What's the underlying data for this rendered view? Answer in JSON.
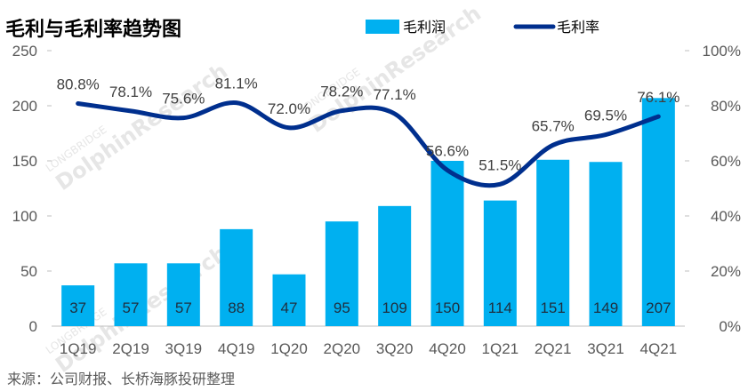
{
  "title": "毛利与毛利率趋势图",
  "source": "来源：公司财报、长桥海豚投研整理",
  "watermark": {
    "top": "LONGBRIDGE",
    "main": "DolphinResearch"
  },
  "chart_data": {
    "type": "bar+line",
    "categories": [
      "1Q19",
      "2Q19",
      "3Q19",
      "4Q19",
      "1Q20",
      "2Q20",
      "3Q20",
      "4Q20",
      "1Q21",
      "2Q21",
      "3Q21",
      "4Q21"
    ],
    "series": [
      {
        "name": "毛利润",
        "type": "bar",
        "axis": "left",
        "color": "#00b0f0",
        "values": [
          37,
          57,
          57,
          88,
          47,
          95,
          109,
          150,
          114,
          151,
          149,
          207
        ],
        "labels": [
          "37",
          "57",
          "57",
          "88",
          "47",
          "95",
          "109",
          "150",
          "114",
          "151",
          "149",
          "207"
        ]
      },
      {
        "name": "毛利率",
        "type": "line",
        "axis": "right",
        "color": "#002f8e",
        "values": [
          80.8,
          78.1,
          75.6,
          81.1,
          72.0,
          78.2,
          77.1,
          56.6,
          51.5,
          65.7,
          69.5,
          76.1
        ],
        "labels": [
          "80.8%",
          "78.1%",
          "75.6%",
          "81.1%",
          "72.0%",
          "78.2%",
          "77.1%",
          "56.6%",
          "51.5%",
          "65.7%",
          "69.5%",
          "76.1%"
        ]
      }
    ],
    "y_left": {
      "min": 0,
      "max": 250,
      "ticks": [
        "0",
        "50",
        "100",
        "150",
        "200",
        "250"
      ]
    },
    "y_right": {
      "min": 0,
      "max": 100,
      "ticks": [
        "0%",
        "20%",
        "40%",
        "60%",
        "80%",
        "100%"
      ]
    },
    "legend_position": "top-right",
    "grid": false
  }
}
